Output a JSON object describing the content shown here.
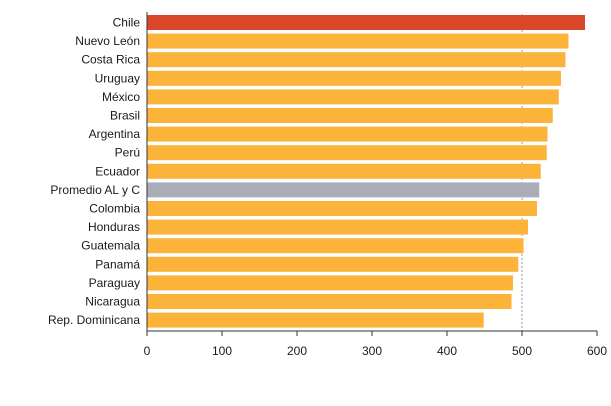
{
  "chart_data": {
    "type": "bar",
    "orientation": "horizontal",
    "title": "",
    "xlabel": "",
    "ylabel": "",
    "xlim": [
      0,
      600
    ],
    "x_ticks": [
      0,
      100,
      200,
      300,
      400,
      500,
      600
    ],
    "reference_line": 500,
    "grid": false,
    "categories": [
      "Chile",
      "Nuevo León",
      "Costa Rica",
      "Uruguay",
      "México",
      "Brasil",
      "Argentina",
      "Perú",
      "Ecuador",
      "Promedio AL y C",
      "Colombia",
      "Honduras",
      "Guatemala",
      "Panamá",
      "Paraguay",
      "Nicaragua",
      "Rep. Dominicana"
    ],
    "values": [
      584,
      562,
      558,
      552,
      549,
      541,
      534,
      533,
      525,
      523,
      520,
      508,
      502,
      495,
      488,
      486,
      449
    ],
    "highlight": {
      "Chile": "#d9462a",
      "Promedio AL y C": "#a8adb8"
    },
    "colors": {
      "default_bar": "#fbb33a",
      "bar_stroke": "#ffffff",
      "axis": "#333333",
      "reference_line": "#9a9a9a"
    }
  }
}
